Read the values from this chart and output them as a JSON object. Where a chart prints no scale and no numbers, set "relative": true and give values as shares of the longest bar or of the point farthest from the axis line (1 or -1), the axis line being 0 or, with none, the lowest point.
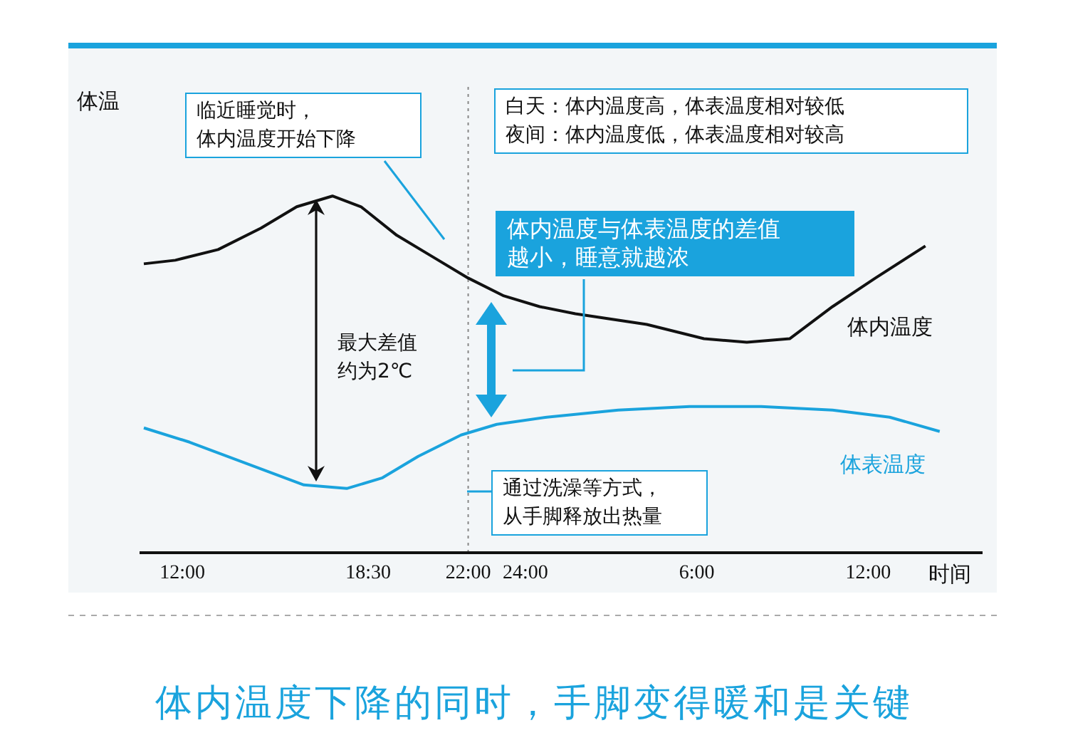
{
  "chart_data": {
    "type": "line",
    "relative": true,
    "title": "体内温度下降的同时，手脚变得暖和是关键",
    "xlabel": "时间",
    "ylabel": "体温",
    "xlim": [
      "--01-01T10:30",
      "--01-02T16:00"
    ],
    "xticks": [
      {
        "value": "--01-01T12:00",
        "label": "12:00"
      },
      {
        "value": "--01-01T18:30",
        "label": "18:30"
      },
      {
        "value": "--01-01T22:00",
        "label": "22:00"
      },
      {
        "value": "--01-02T00:00",
        "label": "24:00"
      },
      {
        "value": "--01-02T06:00",
        "label": "6:00"
      },
      {
        "value": "--01-02T12:00",
        "label": "12:00"
      }
    ],
    "series": [
      {
        "name": "体内温度",
        "color": "#111111",
        "x": [
          "--01-01T10:39",
          "--01-01T11:45",
          "--01-01T13:15",
          "--01-01T14:45",
          "--01-01T16:00",
          "--01-01T17:15",
          "--01-01T18:15",
          "--01-01T19:30",
          "--01-01T20:45",
          "--01-01T22:00",
          "--01-01T23:15",
          "--01-02T00:30",
          "--01-02T01:45",
          "--01-02T04:15",
          "--01-02T06:15",
          "--01-02T07:45",
          "--01-02T09:15",
          "--01-02T10:45",
          "--01-02T12:15",
          "--01-02T14:00"
        ],
        "values": [
          0.81,
          0.82,
          0.85,
          0.91,
          0.97,
          1,
          0.97,
          0.89,
          0.83,
          0.77,
          0.72,
          0.69,
          0.67,
          0.64,
          0.6,
          0.59,
          0.6,
          0.69,
          0.77,
          0.86
        ]
      },
      {
        "name": "体表温度",
        "color": "#1aa3dd",
        "x": [
          "--01-01T10:39",
          "--01-01T12:15",
          "--01-01T14:15",
          "--01-01T16:15",
          "--01-01T17:45",
          "--01-01T19:00",
          "--01-01T20:15",
          "--01-01T21:45",
          "--01-01T23:00",
          "--01-02T00:45",
          "--01-02T03:15",
          "--01-02T05:45",
          "--01-02T08:15",
          "--01-02T10:45",
          "--01-02T12:45",
          "--01-02T14:30"
        ],
        "values": [
          0.35,
          0.31,
          0.25,
          0.19,
          0.18,
          0.21,
          0.27,
          0.33,
          0.36,
          0.38,
          0.4,
          0.41,
          0.41,
          0.4,
          0.38,
          0.34
        ]
      }
    ],
    "ref_lines": [
      {
        "axis": "x",
        "value": "--01-01T22:00",
        "color": "#888888",
        "line_style": "dotted"
      }
    ],
    "annotations": [
      "临近睡觉时，体内温度开始下降",
      "白天：体内温度高，体表温度相对较低夜间：体内温度低，体表温度相对较高",
      "体内温度与体表温度的差值越小，睡意就越浓",
      "最大差值约为2℃",
      "通过洗澡等方式，从手脚释放出热量"
    ],
    "legend": false,
    "grid": false,
    "marker": "none",
    "line_style": "solid"
  }
}
